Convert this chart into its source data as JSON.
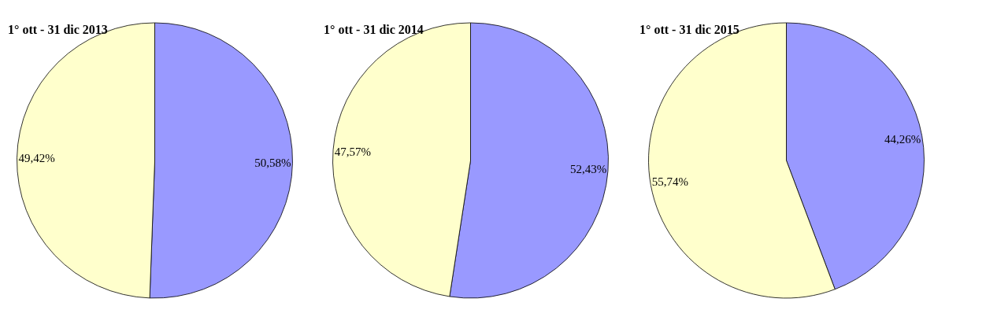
{
  "chart_data": [
    {
      "type": "pie",
      "title": "1° ott - 31 dic 2013",
      "categories": [
        null,
        null
      ],
      "values": [
        50.58,
        49.42
      ],
      "colors": [
        "#9999ff",
        "#ffffcc"
      ],
      "value_labels": [
        "50,58%",
        "49,42%"
      ]
    },
    {
      "type": "pie",
      "title": "1° ott - 31 dic 2014",
      "categories": [
        null,
        null
      ],
      "values": [
        52.43,
        47.57
      ],
      "colors": [
        "#9999ff",
        "#ffffcc"
      ],
      "value_labels": [
        "52,43%",
        "47,57%"
      ]
    },
    {
      "type": "pie",
      "title": "1° ott - 31 dic 2015",
      "categories": [
        null,
        null
      ],
      "values": [
        44.26,
        55.74
      ],
      "colors": [
        "#9999ff",
        "#ffffcc"
      ],
      "value_labels": [
        "44,26%",
        "55,74%"
      ]
    }
  ]
}
